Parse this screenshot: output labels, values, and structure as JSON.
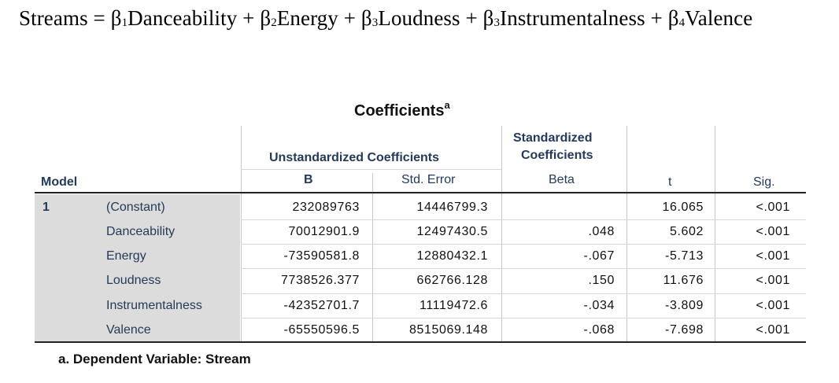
{
  "equation": {
    "prefix": "Streams = β",
    "s1": "1",
    "t1": "Danceability + β",
    "s2": "2",
    "t2": "Energy + β",
    "s3": "3",
    "t3": "Loudness + β",
    "s4": "3",
    "t4": "Instrumentalness + β",
    "s5": "4",
    "t5": "Valence"
  },
  "table": {
    "title": "Coefficients",
    "title_sup": "a",
    "headers": {
      "model": "Model",
      "unstd_group": "Unstandardized Coefficients",
      "std_group_line1": "Standardized",
      "std_group_line2": "Coefficients",
      "b": "B",
      "std_error": "Std. Error",
      "beta": "Beta",
      "t": "t",
      "sig": "Sig."
    },
    "model_number": "1",
    "rows": [
      {
        "label": "(Constant)",
        "b": "232089763",
        "se": "14446799.3",
        "beta": "",
        "t": "16.065",
        "sig": "<.001"
      },
      {
        "label": "Danceability",
        "b": "70012901.9",
        "se": "12497430.5",
        "beta": ".048",
        "t": "5.602",
        "sig": "<.001"
      },
      {
        "label": "Energy",
        "b": "-73590581.8",
        "se": "12880432.1",
        "beta": "-.067",
        "t": "-5.713",
        "sig": "<.001"
      },
      {
        "label": "Loudness",
        "b": "7738526.377",
        "se": "662766.128",
        "beta": ".150",
        "t": "11.676",
        "sig": "<.001"
      },
      {
        "label": "Instrumentalness",
        "b": "-42352701.7",
        "se": "11119472.6",
        "beta": "-.034",
        "t": "-3.809",
        "sig": "<.001"
      },
      {
        "label": "Valence",
        "b": "-65550596.5",
        "se": "8515069.148",
        "beta": "-.068",
        "t": "-7.698",
        "sig": "<.001"
      }
    ],
    "footnote": "a. Dependent Variable: Stream"
  }
}
